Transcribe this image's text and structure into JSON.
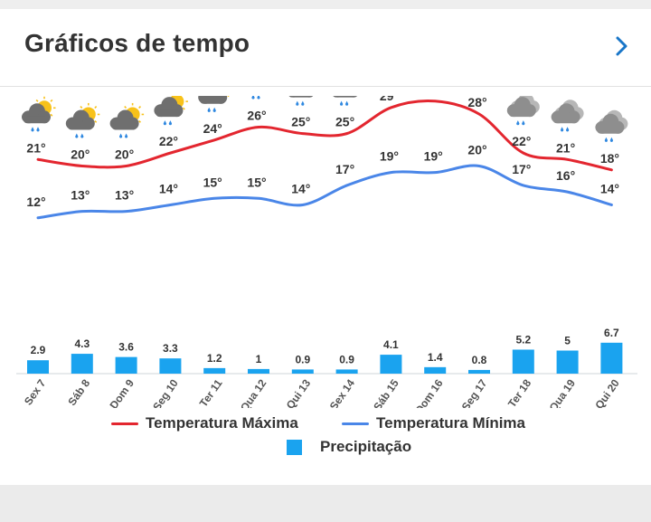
{
  "header": {
    "title": "Gráficos de tempo"
  },
  "colors": {
    "max": "#e3262f",
    "min": "#4a86e8",
    "precip": "#1aa3ef"
  },
  "chart_data": {
    "type": "line+bar",
    "categories": [
      "Sex 7",
      "Sáb 8",
      "Dom 9",
      "Seg 10",
      "Ter 11",
      "Qua 12",
      "Qui 13",
      "Sex 14",
      "Sáb 15",
      "Dom 16",
      "Seg 17",
      "Ter 18",
      "Qua 19",
      "Qui 20"
    ],
    "icons": [
      "partly-cloudy-rain-icon",
      "partly-cloudy-rain-icon",
      "partly-cloudy-rain-icon",
      "partly-cloudy-rain-icon",
      "partly-cloudy-rain-icon",
      "partly-cloudy-rain-icon",
      "partly-cloudy-rain-icon",
      "partly-cloudy-rain-icon",
      "thunderstorm-icon",
      "thunderstorm-icon",
      "partly-cloudy-rain-icon",
      "cloud-rain-icon",
      "cloud-rain-icon",
      "cloud-rain-icon"
    ],
    "series": [
      {
        "name": "Temperatura Máxima",
        "values": [
          21,
          20,
          20,
          22,
          24,
          26,
          25,
          25,
          29,
          30,
          28,
          22,
          21,
          18
        ]
      },
      {
        "name": "Temperatura Mínima",
        "values": [
          12,
          13,
          13,
          14,
          15,
          15,
          14,
          17,
          19,
          19,
          20,
          17,
          16,
          14
        ]
      },
      {
        "name": "Precipitação",
        "values": [
          2.9,
          4.3,
          3.6,
          3.3,
          1.2,
          1,
          0.9,
          0.9,
          4.1,
          1.4,
          0.8,
          5.2,
          5,
          6.7
        ]
      }
    ]
  },
  "legend": {
    "max": "Temperatura Máxima",
    "min": "Temperatura Mínima",
    "precip": "Precipitação"
  }
}
